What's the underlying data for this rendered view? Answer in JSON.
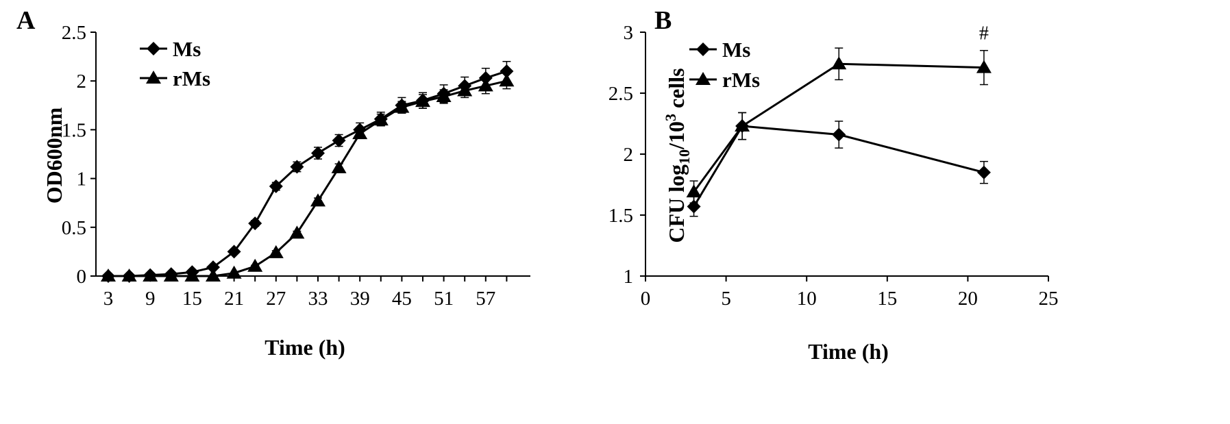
{
  "colors": {
    "ink": "#000000",
    "background": "#ffffff"
  },
  "chart_data": [
    {
      "panel": "A",
      "type": "line",
      "xlabel": "Time (h)",
      "ylabel": "OD600nm",
      "ylim": [
        0,
        2.5
      ],
      "yticks": [
        "0",
        "0.5",
        "1",
        "1.5",
        "2",
        "2.5"
      ],
      "x_tick_labels": [
        "3",
        "9",
        "15",
        "21",
        "27",
        "33",
        "39",
        "45",
        "51",
        "57"
      ],
      "x": [
        3,
        6,
        9,
        12,
        15,
        18,
        21,
        24,
        27,
        30,
        33,
        36,
        39,
        42,
        45,
        48,
        51,
        54,
        57,
        60
      ],
      "legend_position": "top-left",
      "series": [
        {
          "name": "Ms",
          "marker": "diamond",
          "values": [
            0,
            0,
            0.01,
            0.02,
            0.04,
            0.09,
            0.25,
            0.54,
            0.92,
            1.12,
            1.26,
            1.39,
            1.5,
            1.61,
            1.75,
            1.8,
            1.87,
            1.95,
            2.03,
            2.1
          ],
          "errors": [
            0,
            0,
            0,
            0,
            0,
            0,
            0.02,
            0.03,
            0.04,
            0.05,
            0.06,
            0.06,
            0.07,
            0.07,
            0.08,
            0.08,
            0.09,
            0.09,
            0.1,
            0.1
          ]
        },
        {
          "name": "rMs",
          "marker": "triangle",
          "values": [
            0,
            0,
            0,
            0,
            0,
            0,
            0.03,
            0.1,
            0.24,
            0.44,
            0.77,
            1.11,
            1.46,
            1.6,
            1.73,
            1.79,
            1.84,
            1.9,
            1.95,
            2.0
          ],
          "errors": [
            0,
            0,
            0,
            0,
            0,
            0,
            0,
            0.01,
            0.02,
            0.02,
            0.03,
            0.04,
            0.05,
            0.06,
            0.06,
            0.07,
            0.07,
            0.07,
            0.08,
            0.08
          ]
        }
      ]
    },
    {
      "panel": "B",
      "type": "line",
      "xlabel": "Time (h)",
      "ylabel_parts": [
        "CFU log",
        "10",
        "/10",
        "3",
        " cells"
      ],
      "xlim": [
        0,
        25
      ],
      "ylim": [
        1,
        3
      ],
      "xticks": [
        "0",
        "5",
        "10",
        "15",
        "20",
        "25"
      ],
      "yticks": [
        "1",
        "1.5",
        "2",
        "2.5",
        "3"
      ],
      "x": [
        3,
        6,
        12,
        21
      ],
      "legend_position": "top-left",
      "annotation": {
        "text": "#",
        "x": 21
      },
      "series": [
        {
          "name": "Ms",
          "marker": "diamond",
          "values": [
            1.57,
            2.23,
            2.16,
            1.85
          ],
          "errors": [
            0.08,
            0.11,
            0.11,
            0.09
          ]
        },
        {
          "name": "rMs",
          "marker": "triangle",
          "values": [
            1.69,
            2.23,
            2.74,
            2.71
          ],
          "errors": [
            0.09,
            0.11,
            0.13,
            0.14
          ]
        }
      ]
    }
  ]
}
